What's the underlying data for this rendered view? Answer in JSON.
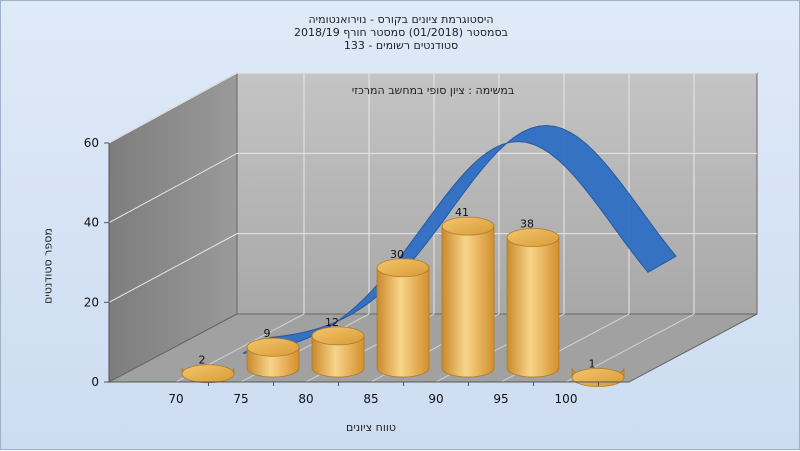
{
  "titles": {
    "line1": "היסטוגרמת ציונים בקורס - נוירואנטומיה",
    "line2": "בסמסטר  (01/2018)  סמסטר חורף 2018/19",
    "line3": "סטודנטים רשומים - 133"
  },
  "chart_data": {
    "type": "bar",
    "title": "היסטוגרמת ציונים בקורס - נוירואנטומיה",
    "annotation": "במשימה : ציון סופי במחשב המרכזי",
    "xlabel": "טווח ציונים",
    "ylabel": "מספר סטודנטים",
    "ylim": [
      0,
      60
    ],
    "yticks": [
      0,
      20,
      40,
      60
    ],
    "xticks": [
      "70",
      "75",
      "80",
      "85",
      "90",
      "95",
      "100"
    ],
    "categories": [
      "70-75",
      "75-80",
      "80-85",
      "85-90",
      "90-95",
      "95-100",
      "100"
    ],
    "values": [
      2,
      9,
      12,
      30,
      41,
      38,
      1
    ],
    "grid": true,
    "legend": "none",
    "colors": {
      "bar": "#e3a33c",
      "bar_light": "#f8d58a",
      "curve": "#2f6fc4",
      "back_wall": "#a9a9a9",
      "side_wall": "#8a8a8a",
      "floor": "#a1a1a1"
    }
  }
}
